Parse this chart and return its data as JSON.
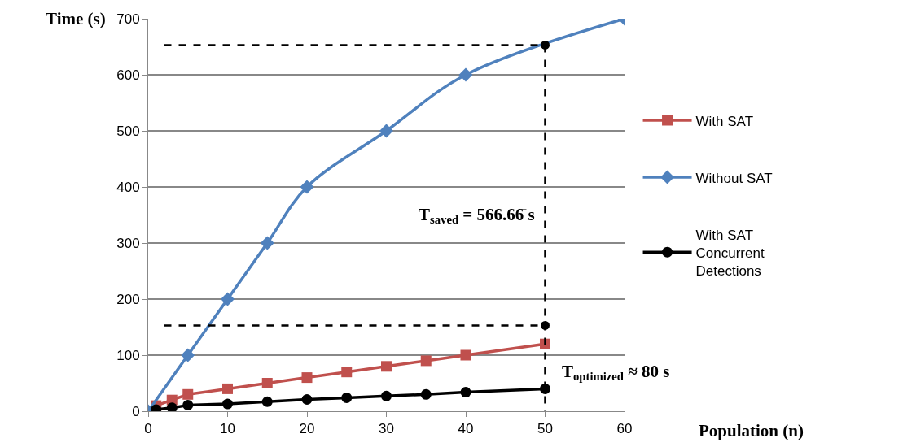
{
  "chart_data": {
    "type": "line",
    "xlabel": "Population (n)",
    "ylabel": "Time (s)",
    "xlim": [
      0,
      60
    ],
    "xticks": [
      0,
      10,
      20,
      30,
      40,
      50,
      60
    ],
    "ylim": [
      0,
      700
    ],
    "yticks": [
      0,
      100,
      200,
      300,
      400,
      500,
      600,
      700
    ],
    "grid": "y",
    "legend": "right",
    "series": [
      {
        "name": "With SAT",
        "color": "#c0504d",
        "marker": "square",
        "x": [
          1,
          3,
          5,
          10,
          15,
          20,
          25,
          30,
          35,
          40,
          50
        ],
        "values": [
          10,
          20,
          30,
          40,
          50,
          60,
          70,
          80,
          90,
          100,
          120
        ]
      },
      {
        "name": "Without SAT",
        "color": "#4f81bd",
        "marker": "diamond",
        "x": [
          0,
          5,
          10,
          15,
          20,
          30,
          40,
          50,
          60
        ],
        "values": [
          0,
          100,
          200,
          300,
          400,
          500,
          600,
          null,
          700
        ]
      },
      {
        "name": "With SAT Concurrent Detections",
        "color": "#000000",
        "marker": "circle",
        "x": [
          1,
          3,
          5,
          10,
          15,
          20,
          25,
          30,
          35,
          40,
          50
        ],
        "values": [
          3,
          6,
          11,
          13,
          17,
          21,
          24,
          27,
          30,
          34,
          40
        ]
      },
      {
        "color": "#000000",
        "marker": "none",
        "line_style": "dashed",
        "x": [
          2,
          50,
          50
        ],
        "values": [
          653,
          653,
          0
        ]
      },
      {
        "color": "#000000",
        "marker": "none",
        "line_style": "dashed",
        "x": [
          2,
          50
        ],
        "values": [
          153,
          153
        ]
      },
      {
        "type": "scatter",
        "color": "#000000",
        "marker": "circle",
        "x": [
          50,
          50
        ],
        "values": [
          653,
          153
        ]
      }
    ],
    "annotations": [
      "T$_{saved}$ = 566.66̄ s",
      "T$_{optimized}$ ≈ 80 s"
    ]
  }
}
